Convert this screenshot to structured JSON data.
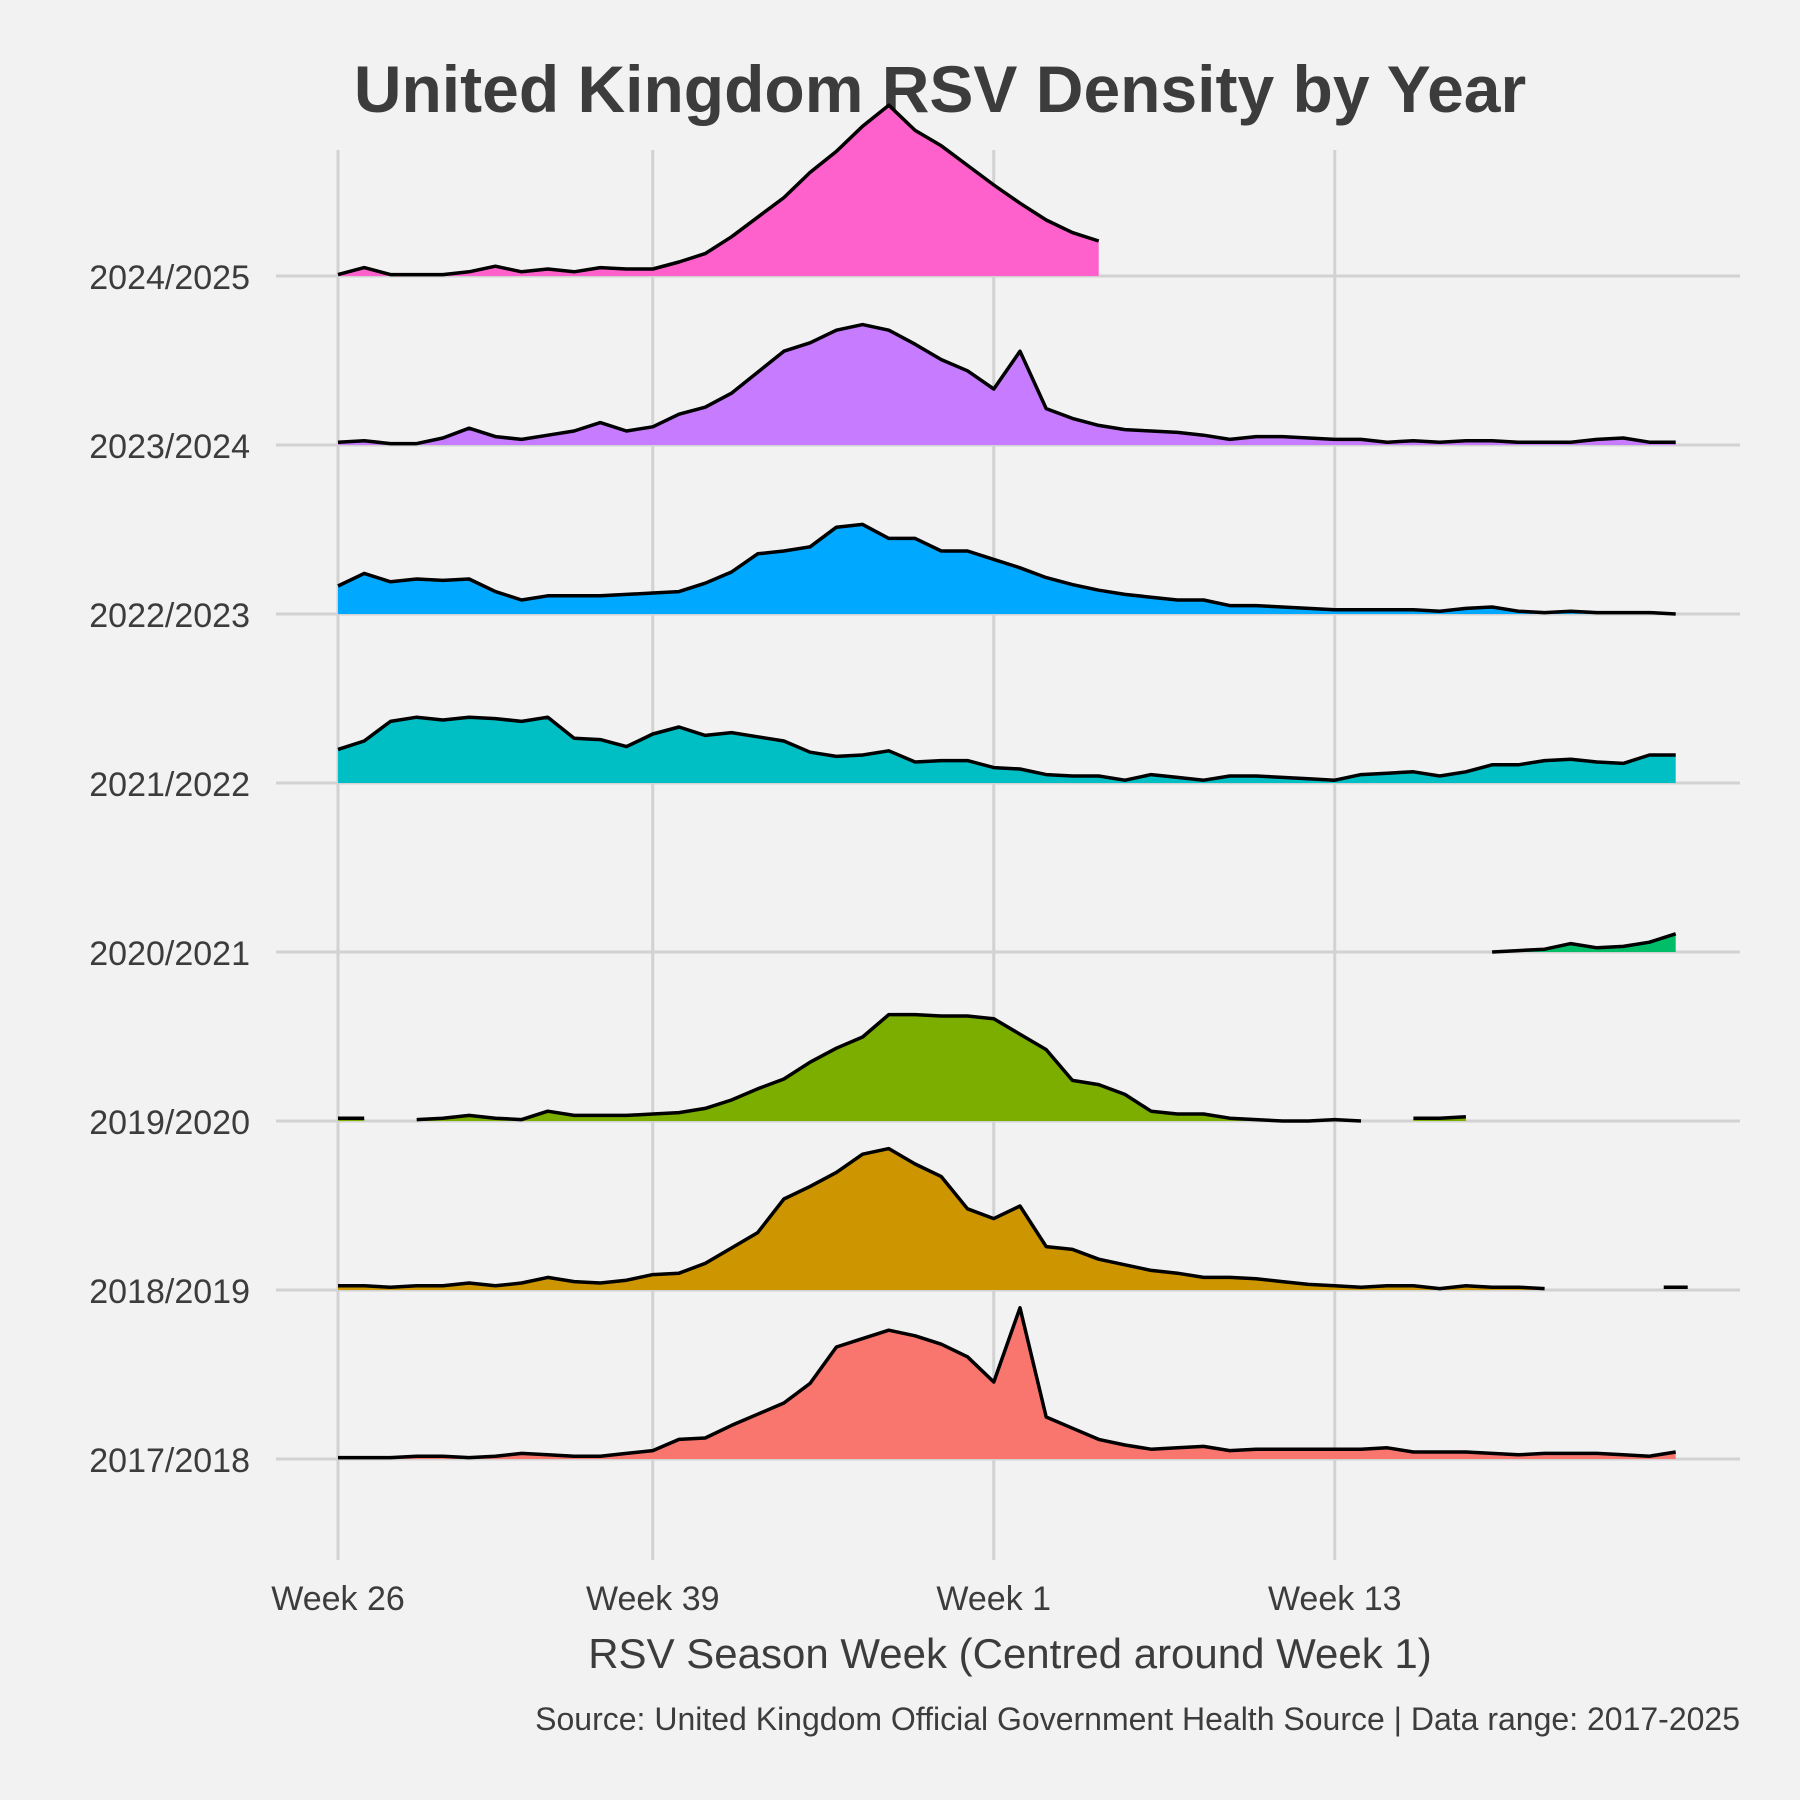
{
  "chart_data": {
    "type": "area",
    "title": "United Kingdom RSV Density by Year",
    "xlabel": "RSV Season Week (Centred around Week 1)",
    "caption": "Source: United Kingdom Official Government Health Source | Data range: 2017-2025",
    "x_ticks": [
      {
        "label": "Week 26",
        "index": 0
      },
      {
        "label": "Week 39",
        "index": 12
      },
      {
        "label": "Week 1",
        "index": 25
      },
      {
        "label": "Week 13",
        "index": 38
      }
    ],
    "xlim": [
      -2.6,
      53.3
    ],
    "series": [
      {
        "name": "2017/2018",
        "color": "#f8766d",
        "values": [
          0.01,
          0.01,
          0.01,
          0.02,
          0.02,
          0.01,
          0.02,
          0.04,
          0.03,
          0.02,
          0.02,
          0.04,
          0.06,
          0.14,
          0.15,
          0.24,
          0.32,
          0.4,
          0.54,
          0.8,
          0.86,
          0.92,
          0.88,
          0.82,
          0.73,
          0.55,
          1.08,
          0.3,
          0.22,
          0.14,
          0.1,
          0.07,
          0.08,
          0.09,
          0.06,
          0.07,
          0.07,
          0.07,
          0.07,
          0.07,
          0.08,
          0.05,
          0.05,
          0.05,
          0.04,
          0.03,
          0.04,
          0.04,
          0.04,
          0.03,
          0.02,
          0.05
        ]
      },
      {
        "name": "2018/2019",
        "color": "#cd9600",
        "values": [
          0.03,
          0.03,
          0.02,
          0.03,
          0.03,
          0.05,
          0.03,
          0.05,
          0.09,
          0.06,
          0.05,
          0.07,
          0.11,
          0.12,
          0.19,
          0.3,
          0.41,
          0.65,
          0.74,
          0.84,
          0.97,
          1.01,
          0.9,
          0.81,
          0.58,
          0.51,
          0.6,
          0.31,
          0.29,
          0.22,
          0.18,
          0.14,
          0.12,
          0.09,
          0.09,
          0.08,
          0.06,
          0.04,
          0.03,
          0.02,
          0.03,
          0.03,
          0.01,
          0.03,
          0.02,
          0.02,
          0.01,
          null,
          null,
          null,
          null,
          0.02
        ]
      },
      {
        "name": "2019/2020",
        "color": "#7cae00",
        "values": [
          0.02,
          0.02,
          null,
          0.01,
          0.02,
          0.04,
          0.02,
          0.01,
          0.07,
          0.04,
          0.04,
          0.04,
          0.05,
          0.06,
          0.09,
          0.15,
          0.23,
          0.3,
          0.42,
          0.52,
          0.6,
          0.76,
          0.76,
          0.75,
          0.75,
          0.73,
          0.62,
          0.51,
          0.29,
          0.26,
          0.19,
          0.07,
          0.05,
          0.05,
          0.02,
          0.01,
          0.0,
          0.0,
          0.01,
          0.0,
          null,
          0.02,
          0.02,
          0.03,
          null,
          null,
          null,
          null,
          null,
          null,
          null,
          null
        ]
      },
      {
        "name": "2020/2021",
        "color": "#00be67",
        "values": [
          null,
          null,
          null,
          null,
          null,
          null,
          null,
          null,
          null,
          null,
          null,
          null,
          null,
          null,
          null,
          null,
          null,
          null,
          null,
          null,
          null,
          null,
          null,
          null,
          null,
          null,
          null,
          null,
          null,
          null,
          null,
          null,
          null,
          null,
          null,
          null,
          null,
          null,
          null,
          null,
          null,
          null,
          null,
          null,
          0.0,
          0.01,
          0.02,
          0.06,
          0.03,
          0.04,
          0.07,
          0.13
        ]
      },
      {
        "name": "2021/2022",
        "color": "#00bfc4",
        "values": [
          0.24,
          0.3,
          0.44,
          0.47,
          0.45,
          0.47,
          0.46,
          0.44,
          0.47,
          0.32,
          0.31,
          0.26,
          0.35,
          0.4,
          0.34,
          0.36,
          0.33,
          0.3,
          0.22,
          0.19,
          0.2,
          0.23,
          0.15,
          0.16,
          0.16,
          0.11,
          0.1,
          0.06,
          0.05,
          0.05,
          0.02,
          0.06,
          0.04,
          0.02,
          0.05,
          0.05,
          0.04,
          0.03,
          0.02,
          0.06,
          0.07,
          0.08,
          0.05,
          0.08,
          0.13,
          0.13,
          0.16,
          0.17,
          0.15,
          0.14,
          0.2,
          0.2
        ]
      },
      {
        "name": "2022/2023",
        "color": "#00a9ff",
        "values": [
          0.2,
          0.29,
          0.23,
          0.25,
          0.24,
          0.25,
          0.16,
          0.1,
          0.13,
          0.13,
          0.13,
          0.14,
          0.15,
          0.16,
          0.22,
          0.3,
          0.43,
          0.45,
          0.48,
          0.62,
          0.64,
          0.54,
          0.54,
          0.45,
          0.45,
          0.39,
          0.33,
          0.26,
          0.21,
          0.17,
          0.14,
          0.12,
          0.1,
          0.1,
          0.06,
          0.06,
          0.05,
          0.04,
          0.03,
          0.03,
          0.03,
          0.03,
          0.02,
          0.04,
          0.05,
          0.02,
          0.01,
          0.02,
          0.01,
          0.01,
          0.01,
          0.0
        ]
      },
      {
        "name": "2023/2024",
        "color": "#c77cff",
        "values": [
          0.02,
          0.03,
          0.01,
          0.01,
          0.05,
          0.12,
          0.06,
          0.04,
          0.07,
          0.1,
          0.16,
          0.1,
          0.13,
          0.22,
          0.27,
          0.37,
          0.52,
          0.67,
          0.73,
          0.82,
          0.86,
          0.82,
          0.72,
          0.61,
          0.53,
          0.4,
          0.67,
          0.26,
          0.19,
          0.14,
          0.11,
          0.1,
          0.09,
          0.07,
          0.04,
          0.06,
          0.06,
          0.05,
          0.04,
          0.04,
          0.02,
          0.03,
          0.02,
          0.03,
          0.03,
          0.02,
          0.02,
          0.02,
          0.04,
          0.05,
          0.02,
          0.02
        ]
      },
      {
        "name": "2024/2025",
        "color": "#ff61cc",
        "values": [
          0.01,
          0.06,
          0.01,
          0.01,
          0.01,
          0.03,
          0.07,
          0.03,
          0.05,
          0.03,
          0.06,
          0.05,
          0.05,
          0.1,
          0.16,
          0.28,
          0.42,
          0.56,
          0.74,
          0.89,
          1.07,
          1.22,
          1.04,
          0.93,
          0.79,
          0.65,
          0.52,
          0.4,
          0.31,
          0.25,
          null,
          null,
          null,
          null,
          null,
          null,
          null,
          null,
          null,
          null,
          null,
          null,
          null,
          null,
          null,
          null,
          null,
          null,
          null,
          null,
          null,
          null
        ]
      }
    ],
    "grid": true,
    "legend": "none"
  }
}
